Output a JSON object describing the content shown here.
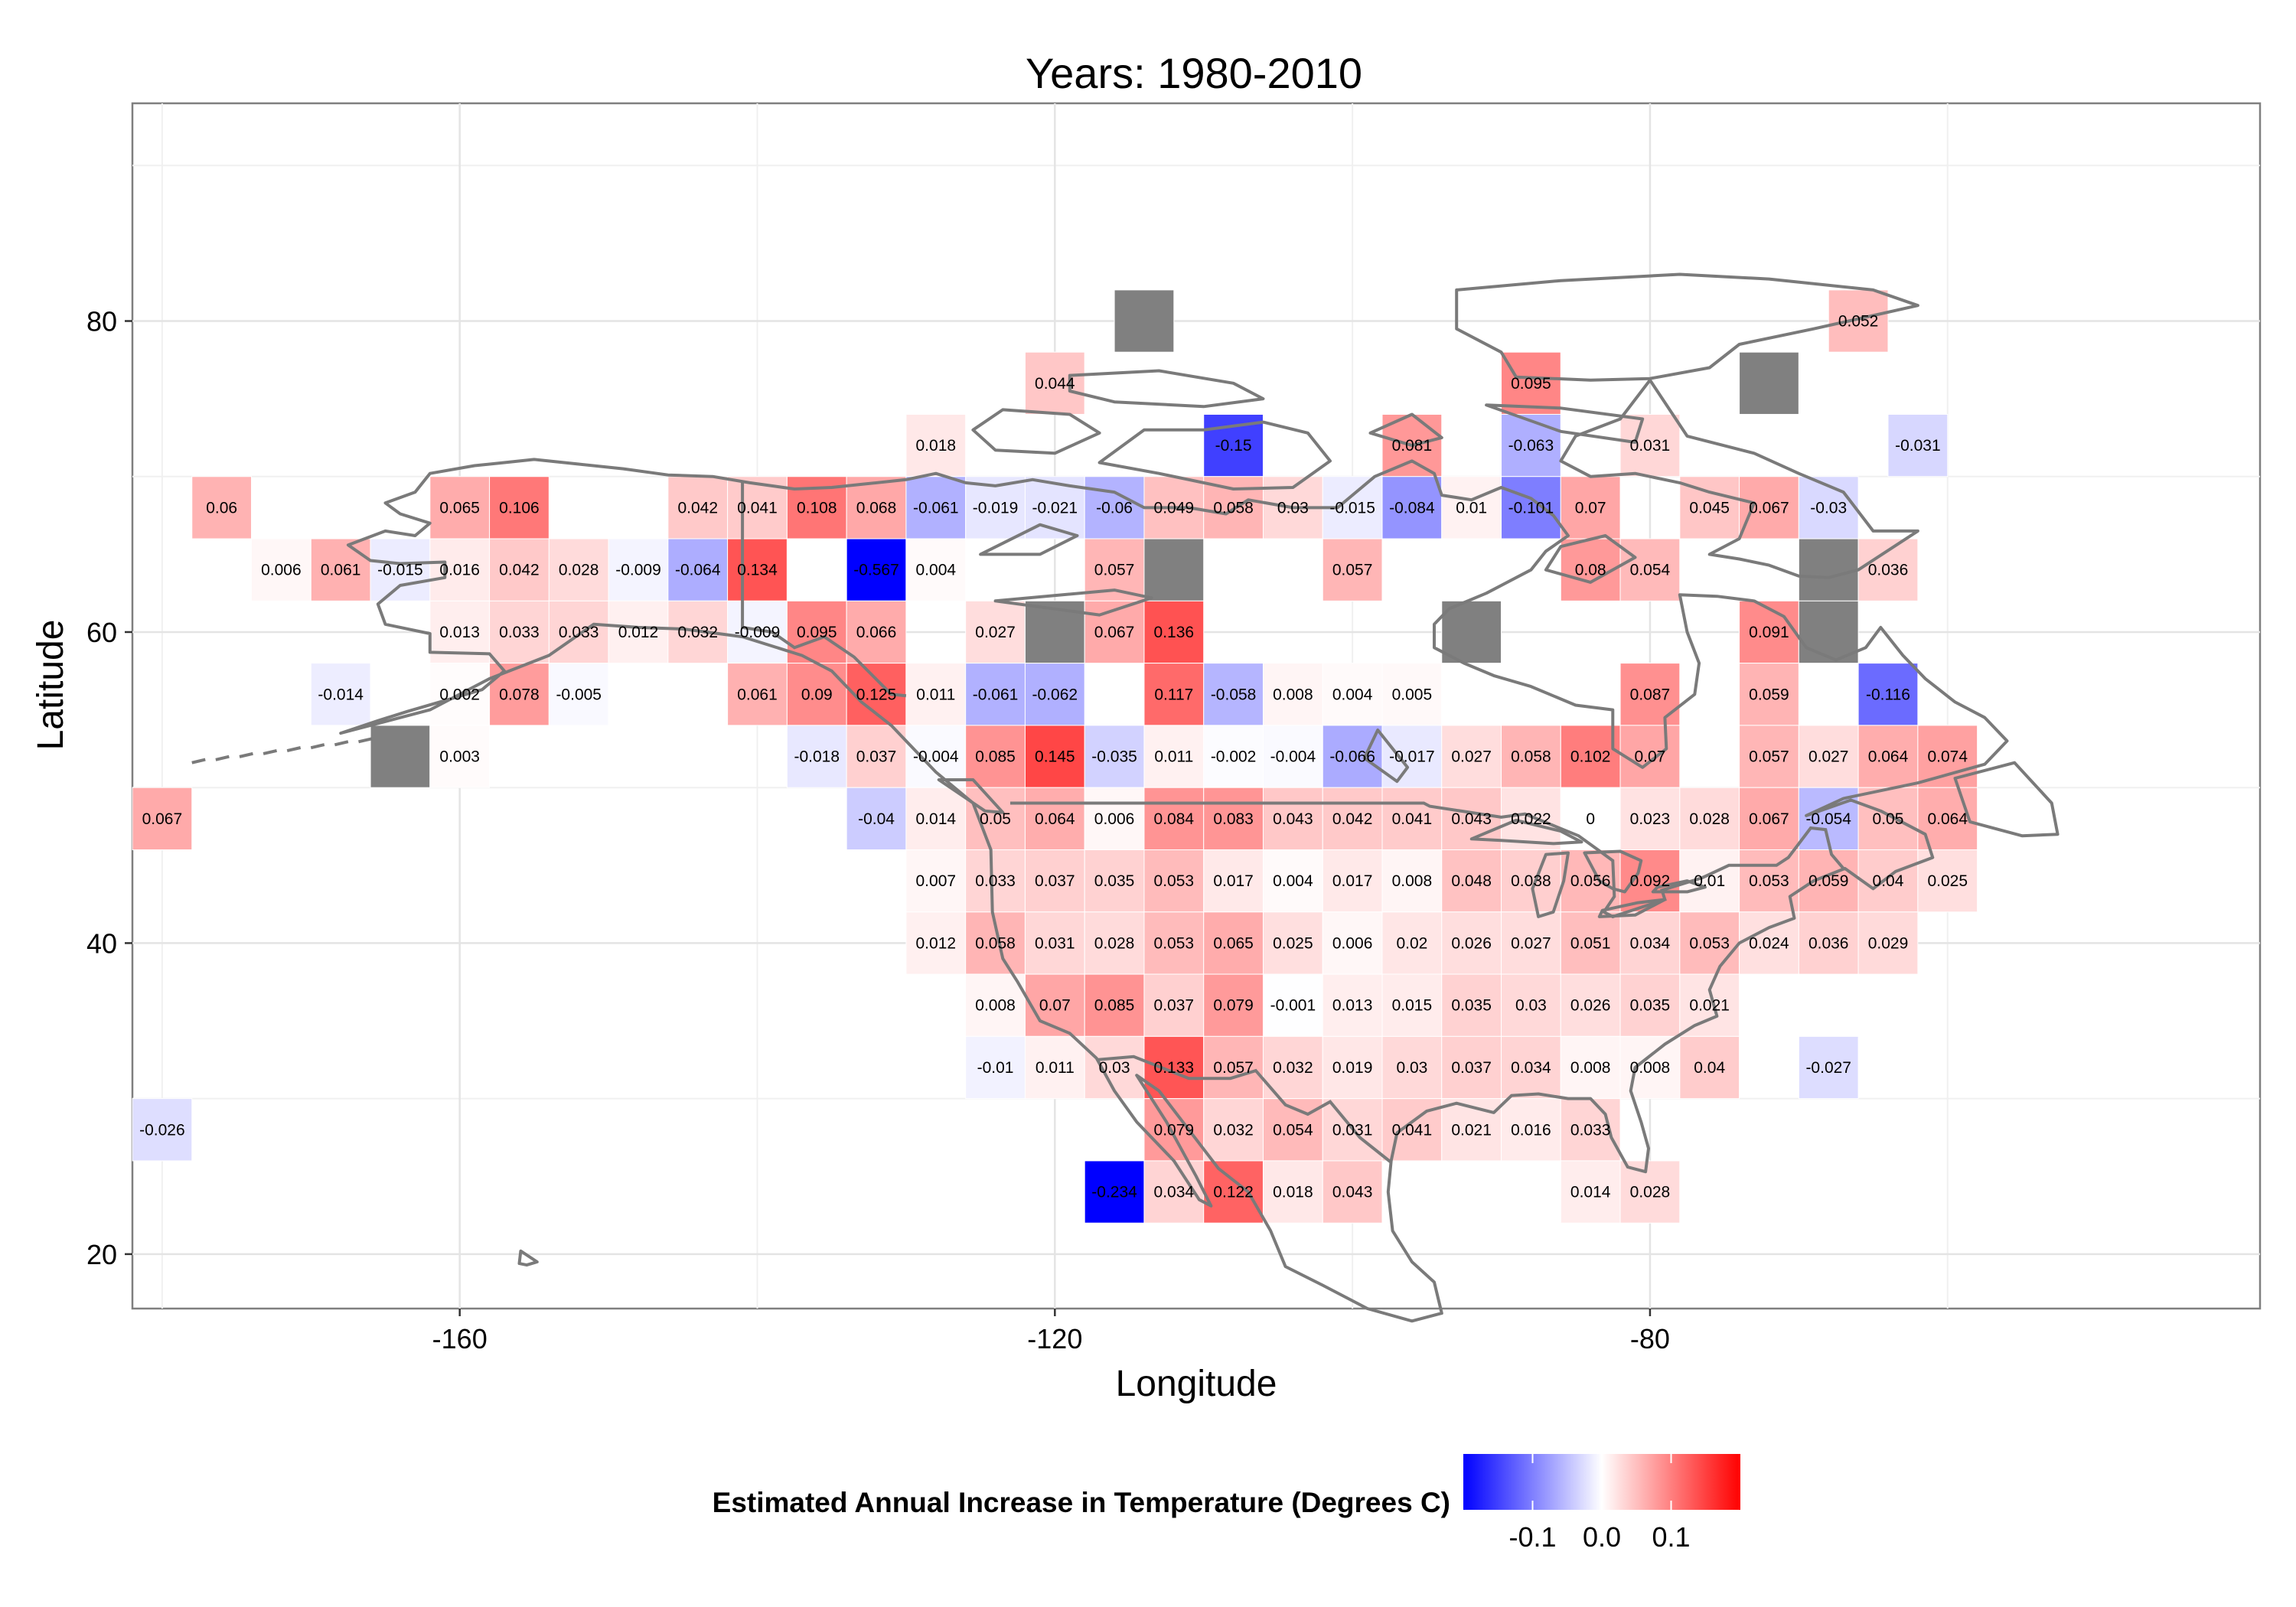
{
  "chart_data": {
    "type": "heatmap",
    "title": "Years: 1980-2010",
    "xlabel": "Longitude",
    "ylabel": "Latitude",
    "xlim": [
      -182,
      -125.5
    ],
    "ylim": [
      16.5,
      94
    ],
    "xlim_full": [
      -182,
      -39
    ],
    "xticks": [
      -160,
      -120,
      -80
    ],
    "yticks": [
      20,
      40,
      60,
      80
    ],
    "xtick_labels": [
      "-160",
      "-120",
      "-80"
    ],
    "ytick_labels": [
      "20",
      "40",
      "60",
      "80"
    ],
    "grid": true,
    "cell_size_degrees": 4,
    "missing_color": "#808080",
    "color_scale": {
      "low": "#0000ff",
      "mid": "#ffffff",
      "high": "#ff0000",
      "limits": [
        -0.2,
        0.2
      ]
    },
    "legend": {
      "title": "Estimated Annual Increase in Temperature (Degrees C)",
      "position": "bottom",
      "ticks": [
        -0.1,
        0.0,
        0.1
      ],
      "tick_labels": [
        "-0.1",
        "0.0",
        "0.1"
      ]
    },
    "cells": [
      {
        "lon": -114,
        "lat": 80,
        "value": null
      },
      {
        "lon": -66,
        "lat": 80,
        "value": 0.052
      },
      {
        "lon": -120,
        "lat": 76,
        "value": 0.044
      },
      {
        "lon": -88,
        "lat": 76,
        "value": 0.095
      },
      {
        "lon": -72,
        "lat": 76,
        "value": null
      },
      {
        "lon": -128,
        "lat": 72,
        "value": 0.018
      },
      {
        "lon": -108,
        "lat": 72,
        "value": -0.15
      },
      {
        "lon": -96,
        "lat": 72,
        "value": 0.081
      },
      {
        "lon": -88,
        "lat": 72,
        "value": -0.063
      },
      {
        "lon": -80,
        "lat": 72,
        "value": 0.031
      },
      {
        "lon": -62,
        "lat": 72,
        "value": -0.031
      },
      {
        "lon": -176,
        "lat": 68,
        "value": 0.06
      },
      {
        "lon": -160,
        "lat": 68,
        "value": 0.065
      },
      {
        "lon": -156,
        "lat": 68,
        "value": 0.106
      },
      {
        "lon": -144,
        "lat": 68,
        "value": 0.042
      },
      {
        "lon": -140,
        "lat": 68,
        "value": 0.041
      },
      {
        "lon": -136,
        "lat": 68,
        "value": 0.108
      },
      {
        "lon": -132,
        "lat": 68,
        "value": 0.068
      },
      {
        "lon": -128,
        "lat": 68,
        "value": -0.061
      },
      {
        "lon": -124,
        "lat": 68,
        "value": -0.019
      },
      {
        "lon": -120,
        "lat": 68,
        "value": -0.021
      },
      {
        "lon": -116,
        "lat": 68,
        "value": -0.06
      },
      {
        "lon": -112,
        "lat": 68,
        "value": 0.049
      },
      {
        "lon": -108,
        "lat": 68,
        "value": 0.058
      },
      {
        "lon": -104,
        "lat": 68,
        "value": 0.03
      },
      {
        "lon": -100,
        "lat": 68,
        "value": -0.015
      },
      {
        "lon": -96,
        "lat": 68,
        "value": -0.084
      },
      {
        "lon": -92,
        "lat": 68,
        "value": 0.01
      },
      {
        "lon": -88,
        "lat": 68,
        "value": -0.101
      },
      {
        "lon": -84,
        "lat": 68,
        "value": 0.07
      },
      {
        "lon": -76,
        "lat": 68,
        "value": 0.045
      },
      {
        "lon": -72,
        "lat": 68,
        "value": 0.067
      },
      {
        "lon": -68,
        "lat": 68,
        "value": -0.03
      },
      {
        "lon": -172,
        "lat": 64,
        "value": 0.006
      },
      {
        "lon": -168,
        "lat": 64,
        "value": 0.061
      },
      {
        "lon": -164,
        "lat": 64,
        "value": -0.015
      },
      {
        "lon": -160,
        "lat": 64,
        "value": 0.016
      },
      {
        "lon": -156,
        "lat": 64,
        "value": 0.042
      },
      {
        "lon": -152,
        "lat": 64,
        "value": 0.028
      },
      {
        "lon": -148,
        "lat": 64,
        "value": -0.009
      },
      {
        "lon": -144,
        "lat": 64,
        "value": -0.064
      },
      {
        "lon": -140,
        "lat": 64,
        "value": 0.134
      },
      {
        "lon": -132,
        "lat": 64,
        "value": -0.567
      },
      {
        "lon": -128,
        "lat": 64,
        "value": 0.004
      },
      {
        "lon": -116,
        "lat": 64,
        "value": 0.057
      },
      {
        "lon": -112,
        "lat": 64,
        "value": null
      },
      {
        "lon": -100,
        "lat": 64,
        "value": 0.057
      },
      {
        "lon": -84,
        "lat": 64,
        "value": 0.08
      },
      {
        "lon": -80,
        "lat": 64,
        "value": 0.054
      },
      {
        "lon": -68,
        "lat": 64,
        "value": null
      },
      {
        "lon": -64,
        "lat": 64,
        "value": 0.036
      },
      {
        "lon": -160,
        "lat": 60,
        "value": 0.013
      },
      {
        "lon": -156,
        "lat": 60,
        "value": 0.033
      },
      {
        "lon": -152,
        "lat": 60,
        "value": 0.033
      },
      {
        "lon": -148,
        "lat": 60,
        "value": 0.012
      },
      {
        "lon": -144,
        "lat": 60,
        "value": 0.032
      },
      {
        "lon": -140,
        "lat": 60,
        "value": -0.009
      },
      {
        "lon": -136,
        "lat": 60,
        "value": 0.095
      },
      {
        "lon": -132,
        "lat": 60,
        "value": 0.066
      },
      {
        "lon": -124,
        "lat": 60,
        "value": 0.027
      },
      {
        "lon": -120,
        "lat": 60,
        "value": null
      },
      {
        "lon": -116,
        "lat": 60,
        "value": 0.067
      },
      {
        "lon": -112,
        "lat": 60,
        "value": 0.136
      },
      {
        "lon": -92,
        "lat": 60,
        "value": null
      },
      {
        "lon": -72,
        "lat": 60,
        "value": 0.091
      },
      {
        "lon": -68,
        "lat": 60,
        "value": null
      },
      {
        "lon": -168,
        "lat": 56,
        "value": -0.014
      },
      {
        "lon": -160,
        "lat": 56,
        "value": 0.002
      },
      {
        "lon": -156,
        "lat": 56,
        "value": 0.078
      },
      {
        "lon": -152,
        "lat": 56,
        "value": -0.005
      },
      {
        "lon": -140,
        "lat": 56,
        "value": 0.061
      },
      {
        "lon": -136,
        "lat": 56,
        "value": 0.09
      },
      {
        "lon": -132,
        "lat": 56,
        "value": 0.125
      },
      {
        "lon": -128,
        "lat": 56,
        "value": 0.011
      },
      {
        "lon": -124,
        "lat": 56,
        "value": -0.061
      },
      {
        "lon": -120,
        "lat": 56,
        "value": -0.062
      },
      {
        "lon": -112,
        "lat": 56,
        "value": 0.117
      },
      {
        "lon": -108,
        "lat": 56,
        "value": -0.058
      },
      {
        "lon": -104,
        "lat": 56,
        "value": 0.008
      },
      {
        "lon": -100,
        "lat": 56,
        "value": 0.004
      },
      {
        "lon": -96,
        "lat": 56,
        "value": 0.005
      },
      {
        "lon": -80,
        "lat": 56,
        "value": 0.087
      },
      {
        "lon": -72,
        "lat": 56,
        "value": 0.059
      },
      {
        "lon": -64,
        "lat": 56,
        "value": -0.116
      },
      {
        "lon": -164,
        "lat": 52,
        "value": null
      },
      {
        "lon": -160,
        "lat": 52,
        "value": 0.003
      },
      {
        "lon": -136,
        "lat": 52,
        "value": -0.018
      },
      {
        "lon": -132,
        "lat": 52,
        "value": 0.037
      },
      {
        "lon": -128,
        "lat": 52,
        "value": -0.004
      },
      {
        "lon": -124,
        "lat": 52,
        "value": 0.085
      },
      {
        "lon": -120,
        "lat": 52,
        "value": 0.145
      },
      {
        "lon": -116,
        "lat": 52,
        "value": -0.035
      },
      {
        "lon": -112,
        "lat": 52,
        "value": 0.011
      },
      {
        "lon": -108,
        "lat": 52,
        "value": -0.002
      },
      {
        "lon": -104,
        "lat": 52,
        "value": -0.004
      },
      {
        "lon": -100,
        "lat": 52,
        "value": -0.066
      },
      {
        "lon": -96,
        "lat": 52,
        "value": -0.017
      },
      {
        "lon": -92,
        "lat": 52,
        "value": 0.027
      },
      {
        "lon": -88,
        "lat": 52,
        "value": 0.058
      },
      {
        "lon": -84,
        "lat": 52,
        "value": 0.102
      },
      {
        "lon": -80,
        "lat": 52,
        "value": 0.07
      },
      {
        "lon": -72,
        "lat": 52,
        "value": 0.057
      },
      {
        "lon": -68,
        "lat": 52,
        "value": 0.027
      },
      {
        "lon": -64,
        "lat": 52,
        "value": 0.064
      },
      {
        "lon": -60,
        "lat": 52,
        "value": 0.074
      },
      {
        "lon": -180,
        "lat": 48,
        "value": 0.067
      },
      {
        "lon": -132,
        "lat": 48,
        "value": -0.04
      },
      {
        "lon": -128,
        "lat": 48,
        "value": 0.014
      },
      {
        "lon": -124,
        "lat": 48,
        "value": 0.05
      },
      {
        "lon": -120,
        "lat": 48,
        "value": 0.064
      },
      {
        "lon": -116,
        "lat": 48,
        "value": 0.006
      },
      {
        "lon": -112,
        "lat": 48,
        "value": 0.084
      },
      {
        "lon": -108,
        "lat": 48,
        "value": 0.083
      },
      {
        "lon": -104,
        "lat": 48,
        "value": 0.043
      },
      {
        "lon": -100,
        "lat": 48,
        "value": 0.042
      },
      {
        "lon": -96,
        "lat": 48,
        "value": 0.041
      },
      {
        "lon": -92,
        "lat": 48,
        "value": 0.043
      },
      {
        "lon": -88,
        "lat": 48,
        "value": 0.022
      },
      {
        "lon": -84,
        "lat": 48,
        "value": 0
      },
      {
        "lon": -80,
        "lat": 48,
        "value": 0.023
      },
      {
        "lon": -76,
        "lat": 48,
        "value": 0.028
      },
      {
        "lon": -72,
        "lat": 48,
        "value": 0.067
      },
      {
        "lon": -68,
        "lat": 48,
        "value": -0.054
      },
      {
        "lon": -64,
        "lat": 48,
        "value": 0.05
      },
      {
        "lon": -60,
        "lat": 48,
        "value": 0.064
      },
      {
        "lon": -128,
        "lat": 44,
        "value": 0.007
      },
      {
        "lon": -124,
        "lat": 44,
        "value": 0.033
      },
      {
        "lon": -120,
        "lat": 44,
        "value": 0.037
      },
      {
        "lon": -116,
        "lat": 44,
        "value": 0.035
      },
      {
        "lon": -112,
        "lat": 44,
        "value": 0.053
      },
      {
        "lon": -108,
        "lat": 44,
        "value": 0.017
      },
      {
        "lon": -104,
        "lat": 44,
        "value": 0.004
      },
      {
        "lon": -100,
        "lat": 44,
        "value": 0.017
      },
      {
        "lon": -96,
        "lat": 44,
        "value": 0.008
      },
      {
        "lon": -92,
        "lat": 44,
        "value": 0.048
      },
      {
        "lon": -88,
        "lat": 44,
        "value": 0.038
      },
      {
        "lon": -84,
        "lat": 44,
        "value": 0.056
      },
      {
        "lon": -80,
        "lat": 44,
        "value": 0.092
      },
      {
        "lon": -76,
        "lat": 44,
        "value": 0.01
      },
      {
        "lon": -72,
        "lat": 44,
        "value": 0.053
      },
      {
        "lon": -68,
        "lat": 44,
        "value": 0.059
      },
      {
        "lon": -64,
        "lat": 44,
        "value": 0.04
      },
      {
        "lon": -60,
        "lat": 44,
        "value": 0.025
      },
      {
        "lon": -128,
        "lat": 40,
        "value": 0.012
      },
      {
        "lon": -124,
        "lat": 40,
        "value": 0.058
      },
      {
        "lon": -120,
        "lat": 40,
        "value": 0.031
      },
      {
        "lon": -116,
        "lat": 40,
        "value": 0.028
      },
      {
        "lon": -112,
        "lat": 40,
        "value": 0.053
      },
      {
        "lon": -108,
        "lat": 40,
        "value": 0.065
      },
      {
        "lon": -104,
        "lat": 40,
        "value": 0.025
      },
      {
        "lon": -100,
        "lat": 40,
        "value": 0.006
      },
      {
        "lon": -96,
        "lat": 40,
        "value": 0.02
      },
      {
        "lon": -92,
        "lat": 40,
        "value": 0.026
      },
      {
        "lon": -88,
        "lat": 40,
        "value": 0.027
      },
      {
        "lon": -84,
        "lat": 40,
        "value": 0.051
      },
      {
        "lon": -80,
        "lat": 40,
        "value": 0.034
      },
      {
        "lon": -76,
        "lat": 40,
        "value": 0.053
      },
      {
        "lon": -72,
        "lat": 40,
        "value": 0.024
      },
      {
        "lon": -68,
        "lat": 40,
        "value": 0.036
      },
      {
        "lon": -64,
        "lat": 40,
        "value": 0.029
      },
      {
        "lon": -124,
        "lat": 36,
        "value": 0.008
      },
      {
        "lon": -120,
        "lat": 36,
        "value": 0.07
      },
      {
        "lon": -116,
        "lat": 36,
        "value": 0.085
      },
      {
        "lon": -112,
        "lat": 36,
        "value": 0.037
      },
      {
        "lon": -108,
        "lat": 36,
        "value": 0.079
      },
      {
        "lon": -104,
        "lat": 36,
        "value": -0.001
      },
      {
        "lon": -100,
        "lat": 36,
        "value": 0.013
      },
      {
        "lon": -96,
        "lat": 36,
        "value": 0.015
      },
      {
        "lon": -92,
        "lat": 36,
        "value": 0.035
      },
      {
        "lon": -88,
        "lat": 36,
        "value": 0.03
      },
      {
        "lon": -84,
        "lat": 36,
        "value": 0.026
      },
      {
        "lon": -80,
        "lat": 36,
        "value": 0.035
      },
      {
        "lon": -76,
        "lat": 36,
        "value": 0.021
      },
      {
        "lon": -124,
        "lat": 32,
        "value": -0.01
      },
      {
        "lon": -120,
        "lat": 32,
        "value": 0.011
      },
      {
        "lon": -116,
        "lat": 32,
        "value": 0.03
      },
      {
        "lon": -112,
        "lat": 32,
        "value": 0.133
      },
      {
        "lon": -108,
        "lat": 32,
        "value": 0.057
      },
      {
        "lon": -104,
        "lat": 32,
        "value": 0.032
      },
      {
        "lon": -100,
        "lat": 32,
        "value": 0.019
      },
      {
        "lon": -96,
        "lat": 32,
        "value": 0.03
      },
      {
        "lon": -92,
        "lat": 32,
        "value": 0.037
      },
      {
        "lon": -88,
        "lat": 32,
        "value": 0.034
      },
      {
        "lon": -84,
        "lat": 32,
        "value": 0.008
      },
      {
        "lon": -80,
        "lat": 32,
        "value": 0.008
      },
      {
        "lon": -76,
        "lat": 32,
        "value": 0.04
      },
      {
        "lon": -68,
        "lat": 32,
        "value": -0.027
      },
      {
        "lon": -180,
        "lat": 28,
        "value": -0.026
      },
      {
        "lon": -112,
        "lat": 28,
        "value": 0.079
      },
      {
        "lon": -108,
        "lat": 28,
        "value": 0.032
      },
      {
        "lon": -104,
        "lat": 28,
        "value": 0.054
      },
      {
        "lon": -100,
        "lat": 28,
        "value": 0.031
      },
      {
        "lon": -96,
        "lat": 28,
        "value": 0.041
      },
      {
        "lon": -92,
        "lat": 28,
        "value": 0.021
      },
      {
        "lon": -88,
        "lat": 28,
        "value": 0.016
      },
      {
        "lon": -84,
        "lat": 28,
        "value": 0.033
      },
      {
        "lon": -116,
        "lat": 24,
        "value": -0.234
      },
      {
        "lon": -112,
        "lat": 24,
        "value": 0.034
      },
      {
        "lon": -108,
        "lat": 24,
        "value": 0.122
      },
      {
        "lon": -104,
        "lat": 24,
        "value": 0.018
      },
      {
        "lon": -100,
        "lat": 24,
        "value": 0.043
      },
      {
        "lon": -84,
        "lat": 24,
        "value": 0.014
      },
      {
        "lon": -80,
        "lat": 24,
        "value": 0.028
      }
    ]
  }
}
